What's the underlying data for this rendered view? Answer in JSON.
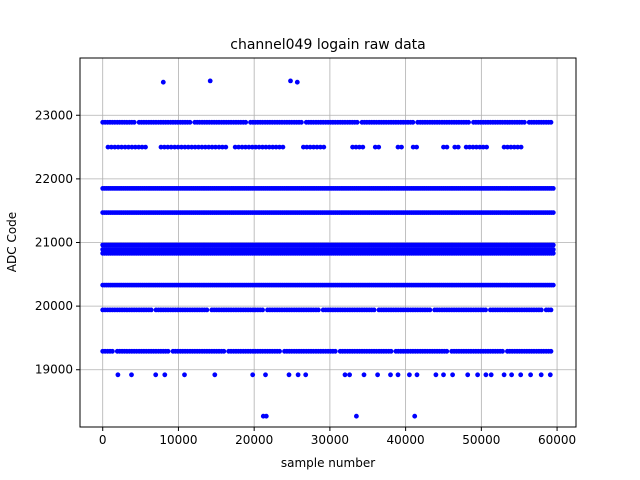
{
  "chart_data": {
    "type": "scatter",
    "title": "channel049 logain raw data",
    "xlabel": "sample number",
    "ylabel": "ADC Code",
    "xlim": [
      -3000,
      62500
    ],
    "ylim": [
      18100,
      23900
    ],
    "xticks": [
      0,
      10000,
      20000,
      30000,
      40000,
      50000,
      60000
    ],
    "yticks": [
      19000,
      20000,
      21000,
      22000,
      23000
    ],
    "grid": true,
    "marker_color": "#0000ff",
    "x_range": [
      0,
      59500
    ],
    "dense_bands": [
      20330,
      20830,
      20890,
      20960,
      21470,
      21850
    ],
    "medium_bands": [
      19290,
      19940,
      22890
    ],
    "sparse_bands": [
      {
        "y": 22500,
        "x_ranges": [
          [
            700,
            5800
          ],
          [
            7700,
            16500
          ],
          [
            17500,
            24000
          ],
          [
            26500,
            29500
          ],
          [
            33000,
            34500
          ],
          [
            36000,
            36500
          ],
          [
            39000,
            39800
          ],
          [
            41000,
            41800
          ],
          [
            45000,
            45500
          ],
          [
            46500,
            47200
          ],
          [
            48000,
            51000
          ],
          [
            53000,
            55500
          ]
        ]
      },
      {
        "y": 18920,
        "x": [
          2000,
          3800,
          7000,
          8200,
          10800,
          14800,
          19800,
          21500,
          24600,
          25800,
          26800,
          32000,
          32600,
          34500,
          36300,
          38000,
          39000,
          40500,
          41500,
          44000,
          45000,
          46200,
          48200,
          49500,
          50600,
          51300,
          53000,
          54000,
          55200,
          56500,
          57900,
          59100
        ]
      }
    ],
    "outliers": [
      {
        "x": 8000,
        "y": 23520
      },
      {
        "x": 14200,
        "y": 23540
      },
      {
        "x": 24800,
        "y": 23540
      },
      {
        "x": 25700,
        "y": 23520
      },
      {
        "x": 21200,
        "y": 18270
      },
      {
        "x": 21600,
        "y": 18270
      },
      {
        "x": 33500,
        "y": 18270
      },
      {
        "x": 41200,
        "y": 18270
      }
    ]
  }
}
